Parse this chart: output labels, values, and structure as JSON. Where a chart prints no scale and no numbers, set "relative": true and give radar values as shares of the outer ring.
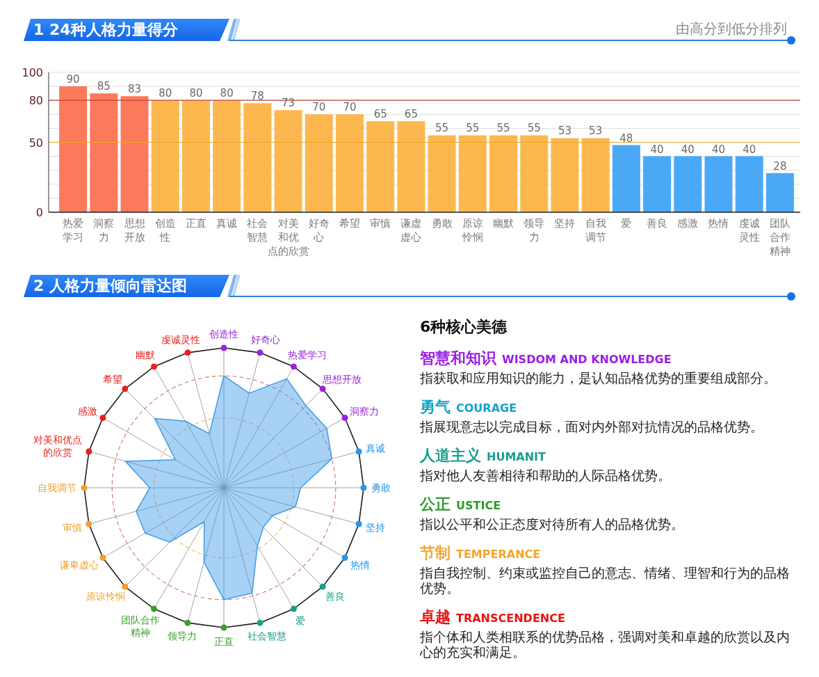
{
  "chart_data": [
    {
      "type": "bar",
      "title": "1 24种人格力量得分",
      "subtitle": "由高分到低分排列",
      "categories": [
        "热爱学习",
        "洞察力",
        "思想开放",
        "创造性",
        "正直",
        "真诚",
        "社会智慧",
        "对美和优点的欣赏",
        "好奇心",
        "希望",
        "审慎",
        "谦虚虚心",
        "勇敢",
        "原谅怜悯",
        "幽默",
        "领导力",
        "坚持",
        "自我调节",
        "爱",
        "善良",
        "感激",
        "热情",
        "虔诚灵性",
        "团队合作精神"
      ],
      "values": [
        90,
        85,
        83,
        80,
        80,
        80,
        78,
        73,
        70,
        70,
        65,
        65,
        55,
        55,
        55,
        55,
        53,
        53,
        48,
        40,
        40,
        40,
        40,
        28
      ],
      "colors": [
        "#fc7a5c",
        "#fc7a5c",
        "#fc7a5c",
        "#fcb84e",
        "#fcb84e",
        "#fcb84e",
        "#fcb84e",
        "#fcb84e",
        "#fcb84e",
        "#fcb84e",
        "#fcb84e",
        "#fcb84e",
        "#fcb84e",
        "#fcb84e",
        "#fcb84e",
        "#fcb84e",
        "#fcb84e",
        "#fcb84e",
        "#4aa9f6",
        "#4aa9f6",
        "#4aa9f6",
        "#4aa9f6",
        "#4aa9f6",
        "#4aa9f6"
      ],
      "ylim": [
        0,
        100
      ],
      "yticks": [
        0,
        {
          "value": 10,
          "label": null
        },
        {
          "value": 20,
          "label": null
        },
        {
          "value": 30,
          "label": null
        },
        {
          "value": 40,
          "label": null
        },
        50,
        {
          "value": 60,
          "label": null
        },
        {
          "value": 70,
          "label": null
        },
        80,
        {
          "value": 90,
          "label": null
        },
        100
      ],
      "grid": "y",
      "ref_lines": [
        {
          "axis": "y",
          "value": 80,
          "color": "#c0453f"
        },
        {
          "axis": "y",
          "value": 50,
          "color": "#eda52c"
        }
      ],
      "data_labels": true
    },
    {
      "type": "radar",
      "title": "2 人格力量倾向雷达图",
      "categories": [
        "创造性",
        "好奇心",
        "热爱学习",
        "思想开放",
        "洞察力",
        "真诚",
        "勇敢",
        "坚持",
        "热情",
        "善良",
        "爱",
        "社会智慧",
        "正直",
        "领导力",
        "团队合作精神",
        "原谅怜悯",
        "谦卑虚心",
        "审慎",
        "自我调节",
        "对美和优点的欣赏",
        "感激",
        "希望",
        "幽默",
        "虔诚灵性"
      ],
      "colors": [
        "#9b22dd",
        "#9b22dd",
        "#9b22dd",
        "#9b22dd",
        "#9b22dd",
        "#2496ec",
        "#2496ec",
        "#2496ec",
        "#2496ec",
        "#1a9e86",
        "#1a9e86",
        "#1a9e86",
        "#3aa02a",
        "#3aa02a",
        "#3aa02a",
        "#f0a030",
        "#f0a030",
        "#f0a030",
        "#f0a030",
        "#e8201a",
        "#e8201a",
        "#e8201a",
        "#e8201a",
        "#e8201a"
      ],
      "values": [
        0.8,
        0.7,
        0.9,
        0.83,
        0.85,
        0.8,
        0.55,
        0.53,
        0.4,
        0.4,
        0.48,
        0.78,
        0.8,
        0.55,
        0.28,
        0.55,
        0.65,
        0.65,
        0.53,
        0.73,
        0.4,
        0.7,
        0.55,
        0.4
      ],
      "color": "#3d9be9",
      "relative": true,
      "grid": true
    },
    {
      "type": "other",
      "title": "6种核心美德",
      "annotations": [
        "智慧和知识 WISDOM AND KNOWLEDGE",
        "指获取和应用知识的能力，是认知品格优势的重要组成部分。",
        "勇气 COURAGE",
        "指展现意志以完成目标，面对内外部对抗情况的品格优势。",
        "人道主义 HUMANIT",
        "指对他人友善相待和帮助的人际品格优势。",
        "公正 USTICE",
        "指以公平和公正态度对待所有人的品格优势。",
        "节制 TEMPERANCE",
        "指自我控制、约束或监控自己的意志、情绪、理智和行为的品格优势。",
        "卓越 TRANSCENDENCE",
        "指个体和人类相联系的优势品格，强调对美和卓越的欣赏以及内心的充实和满足。"
      ]
    }
  ]
}
